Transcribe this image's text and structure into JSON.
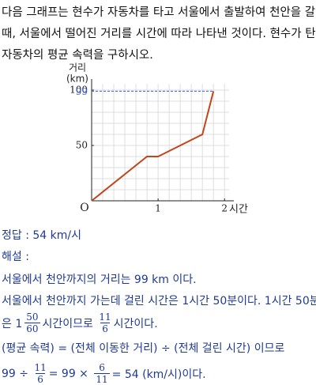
{
  "question": [
    "다음 그래프는 현수가 자동차를 타고 서울에서 출발하여 천안을 갈",
    "때, 서울에서 떨어진 거리를 시간에 따라 나타낸 것이다. 현수가 탄",
    "자동차의 평균 속력을 구하시오."
  ],
  "chart_data": {
    "type": "line",
    "y_label": "거리",
    "y_unit": "(km)",
    "x_label": "시간",
    "origin_label": "O",
    "x": [
      0,
      0.833,
      1,
      1.667,
      1.833
    ],
    "series": [
      {
        "color": "#c0461b",
        "values": [
          0,
          40,
          40,
          60,
          99
        ]
      }
    ],
    "xlim": [
      0,
      2.14
    ],
    "ylim": [
      0,
      110
    ],
    "xticks": [
      1,
      2
    ],
    "yticks": [
      50,
      100
    ],
    "grid": true,
    "reference_line": {
      "value": 99,
      "color": "#3b5bdb"
    }
  },
  "answer": {
    "label": "정답 :",
    "value": "54 km/시"
  },
  "solution_label": "해설 :",
  "solution": [
    [
      {
        "text": "서울에서 천안까지의 거리는 99 km 이다."
      }
    ],
    [
      {
        "text": "서울에서 천안까지 가는데 걸린 시간은 1시간 50분이다. 1시간 50분"
      }
    ],
    [
      {
        "text": "은 1"
      },
      {
        "num": "50",
        "den": "60"
      },
      {
        "text": "시간이므로 "
      },
      {
        "num": "11",
        "den": "6"
      },
      {
        "text": "시간이다."
      }
    ],
    [
      {
        "text": "(평균 속력) = (전체 이동한 거리) ÷ (전체 걸린 시간) 이므로"
      }
    ],
    [
      {
        "text": "99 ÷ "
      },
      {
        "num": "11",
        "den": "6"
      },
      {
        "text": "= 99 × "
      },
      {
        "num": "6",
        "den": "11"
      },
      {
        "text": "= 54 (km/시)이다."
      }
    ]
  ]
}
